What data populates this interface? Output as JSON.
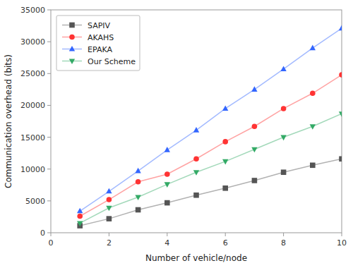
{
  "chart_data": {
    "type": "line",
    "xlabel": "Number of vehicle/node",
    "ylabel": "Communication overhead (bits)",
    "x": [
      1,
      2,
      3,
      4,
      5,
      6,
      7,
      8,
      9,
      10
    ],
    "series": [
      {
        "name": "SAPIV",
        "color": "#555555",
        "marker": "square",
        "values": [
          1100,
          2200,
          3600,
          4700,
          5900,
          7000,
          8200,
          9500,
          10600,
          11600
        ]
      },
      {
        "name": "AKAHS",
        "color": "#ff3333",
        "marker": "circle",
        "values": [
          2600,
          5200,
          8000,
          9200,
          11600,
          14300,
          16700,
          19500,
          21900,
          24800
        ]
      },
      {
        "name": "EPAKA",
        "color": "#3366ff",
        "marker": "triangle-up",
        "values": [
          3400,
          6500,
          9700,
          13000,
          16100,
          19500,
          22500,
          25700,
          29000,
          32100
        ]
      },
      {
        "name": "Our Scheme",
        "color": "#33aa66",
        "marker": "triangle-down",
        "values": [
          1500,
          3900,
          5600,
          7600,
          9500,
          11200,
          13100,
          15000,
          16700,
          18700
        ]
      }
    ],
    "xlim": [
      0,
      10
    ],
    "ylim": [
      0,
      35000
    ],
    "xticks": [
      0,
      2,
      4,
      6,
      8,
      10
    ],
    "yticks": [
      0,
      5000,
      10000,
      15000,
      20000,
      25000,
      30000,
      35000
    ],
    "grid": false,
    "legend": "upper left"
  }
}
